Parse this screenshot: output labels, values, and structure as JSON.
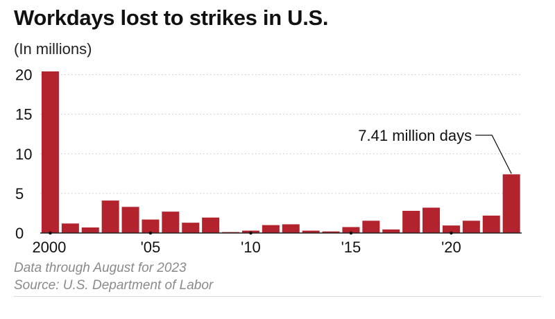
{
  "chart_data": {
    "type": "bar",
    "title": "Workdays lost to strikes in U.S.",
    "subtitle": "(In millions)",
    "x": [
      2000,
      2001,
      2002,
      2003,
      2004,
      2005,
      2006,
      2007,
      2008,
      2009,
      2010,
      2011,
      2012,
      2013,
      2014,
      2015,
      2016,
      2017,
      2018,
      2019,
      2020,
      2021,
      2022,
      2023
    ],
    "values": [
      20.4,
      1.2,
      0.7,
      4.1,
      3.3,
      1.7,
      2.7,
      1.3,
      1.95,
      0.12,
      0.3,
      1.0,
      1.1,
      0.3,
      0.2,
      0.75,
      1.55,
      0.45,
      2.8,
      3.2,
      0.95,
      1.55,
      2.2,
      7.41
    ],
    "y_ticks": [
      0,
      5,
      10,
      15,
      20
    ],
    "ylim": [
      0,
      20.4
    ],
    "x_tick_labels": [
      {
        "year": 2000,
        "label": "2000"
      },
      {
        "year": 2005,
        "label": "'05"
      },
      {
        "year": 2010,
        "label": "'10"
      },
      {
        "year": 2015,
        "label": "'15"
      },
      {
        "year": 2020,
        "label": "'20"
      }
    ],
    "annotation": {
      "year": 2023,
      "text": "7.41 million days"
    },
    "grid": true,
    "bar_color": "#b3232d"
  },
  "notes": {
    "line1": "Data through August for 2023",
    "line2": "Source: U.S. Department of Labor"
  }
}
